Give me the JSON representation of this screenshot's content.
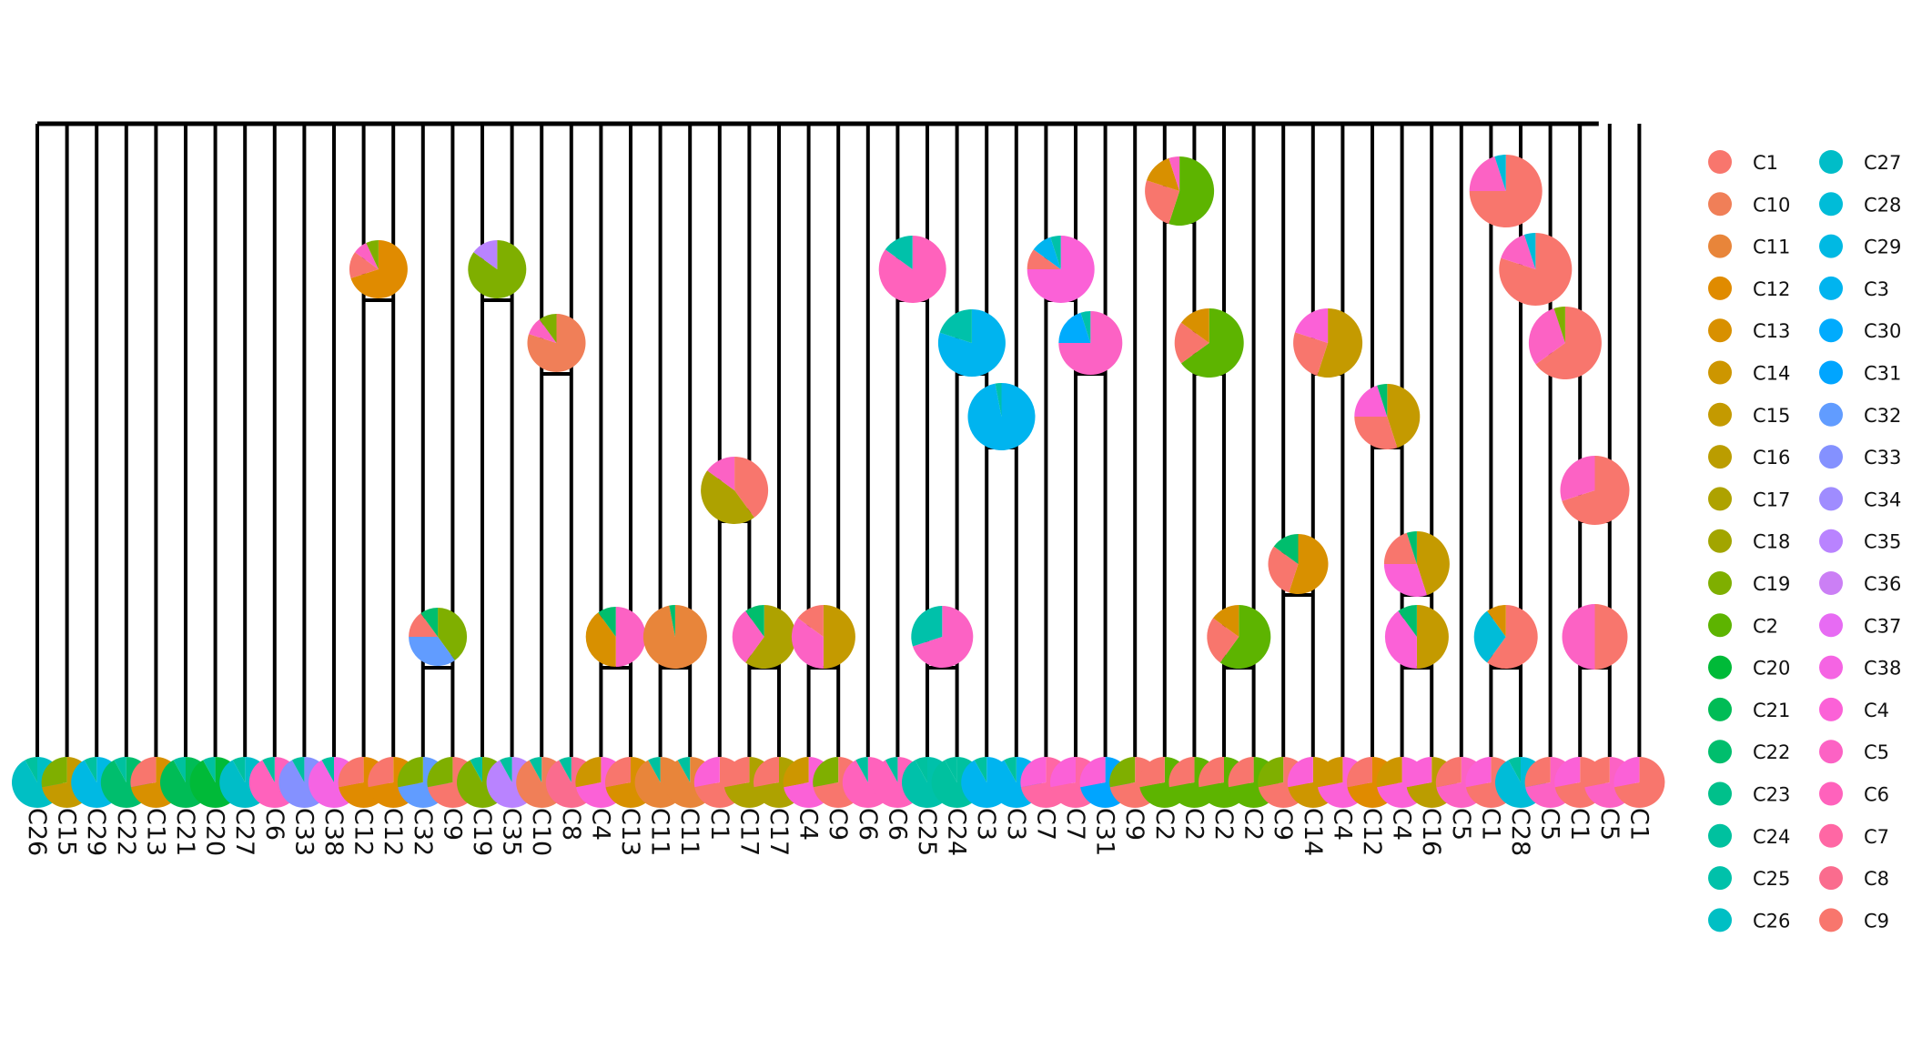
{
  "legend": {
    "column_1": [
      "C1",
      "C10",
      "C11",
      "C12",
      "C13",
      "C14",
      "C15",
      "C16",
      "C17",
      "C18",
      "C19",
      "C2",
      "C20",
      "C21",
      "C22",
      "C23",
      "C24",
      "C25",
      "C26"
    ],
    "column_2": [
      "C27",
      "C28",
      "C29",
      "C3",
      "C30",
      "C31",
      "C32",
      "C33",
      "C34",
      "C35",
      "C36",
      "C37",
      "C38",
      "C4",
      "C5",
      "C6",
      "C7",
      "C8",
      "C9"
    ]
  },
  "cluster_colors": {
    "C1": "#F8766D",
    "C10": "#F07F58",
    "C11": "#E8853A",
    "C12": "#E08B00",
    "C13": "#D89000",
    "C14": "#CD9600",
    "C15": "#C49A00",
    "C16": "#BB9D00",
    "C17": "#AEA200",
    "C18": "#A2A500",
    "C19": "#7FAF00",
    "C2": "#5DB400",
    "C20": "#00BA38",
    "C21": "#00BC56",
    "C22": "#00BE6D",
    "C23": "#00C08B",
    "C24": "#00C19F",
    "C25": "#00C1AA",
    "C26": "#00BFC4",
    "C27": "#00BDC8",
    "C28": "#00BCD8",
    "C29": "#00B9E3",
    "C3": "#00B4EF",
    "C30": "#00ABFD",
    "C31": "#00A5FF",
    "C32": "#619CFF",
    "C33": "#8491FF",
    "C34": "#9F8CFF",
    "C35": "#B983FF",
    "C36": "#CB7FF5",
    "C37": "#E76BF3",
    "C38": "#F564E3",
    "C4": "#FB61D7",
    "C5": "#FC62C4",
    "C6": "#FF62BC",
    "C7": "#FF67A4",
    "C8": "#FA6C8E",
    "C9": "#F8766D"
  },
  "tree": {
    "tip_labels": [
      "C26",
      "C15",
      "C29",
      "C22",
      "C13",
      "C21",
      "C20",
      "C27",
      "C6",
      "C33",
      "C38",
      "C12",
      "C12",
      "C32",
      "C9",
      "C19",
      "C35",
      "C10",
      "C8",
      "C4",
      "C13",
      "C11",
      "C11",
      "C1",
      "C17",
      "C17",
      "C4",
      "C9",
      "C6",
      "C6",
      "C25",
      "C24",
      "C3",
      "C3",
      "C7",
      "C7",
      "C31",
      "C9",
      "C2",
      "C2",
      "C2",
      "C2",
      "C9",
      "C14",
      "C4",
      "C12",
      "C4",
      "C16",
      "C5",
      "C1",
      "C28",
      "C5",
      "C1",
      "C5",
      "C1"
    ]
  }
}
